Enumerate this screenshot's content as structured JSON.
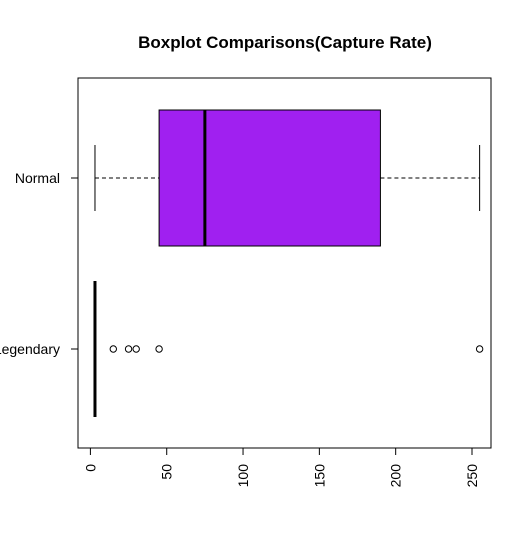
{
  "chart_data": {
    "type": "boxplot",
    "title": "Boxplot Comparisons(Capture Rate)",
    "orientation": "horizontal",
    "xlim": [
      0,
      260
    ],
    "x_ticks": [
      0,
      50,
      100,
      150,
      200,
      250
    ],
    "x_tick_labels": [
      "0",
      "50",
      "100",
      "150",
      "200",
      "250"
    ],
    "categories": [
      "Normal",
      "Legendary"
    ],
    "boxes": [
      {
        "label": "Normal",
        "whisker_low": 3,
        "q1": 45,
        "median": 75,
        "q3": 190,
        "whisker_high": 255,
        "outliers": [],
        "fill": "#a020f0"
      },
      {
        "label": "Legendary",
        "whisker_low": 3,
        "q1": 3,
        "median": 3,
        "q3": 3,
        "whisker_high": 3,
        "outliers": [
          15,
          25,
          30,
          45,
          255
        ],
        "fill": "#a020f0"
      }
    ]
  }
}
